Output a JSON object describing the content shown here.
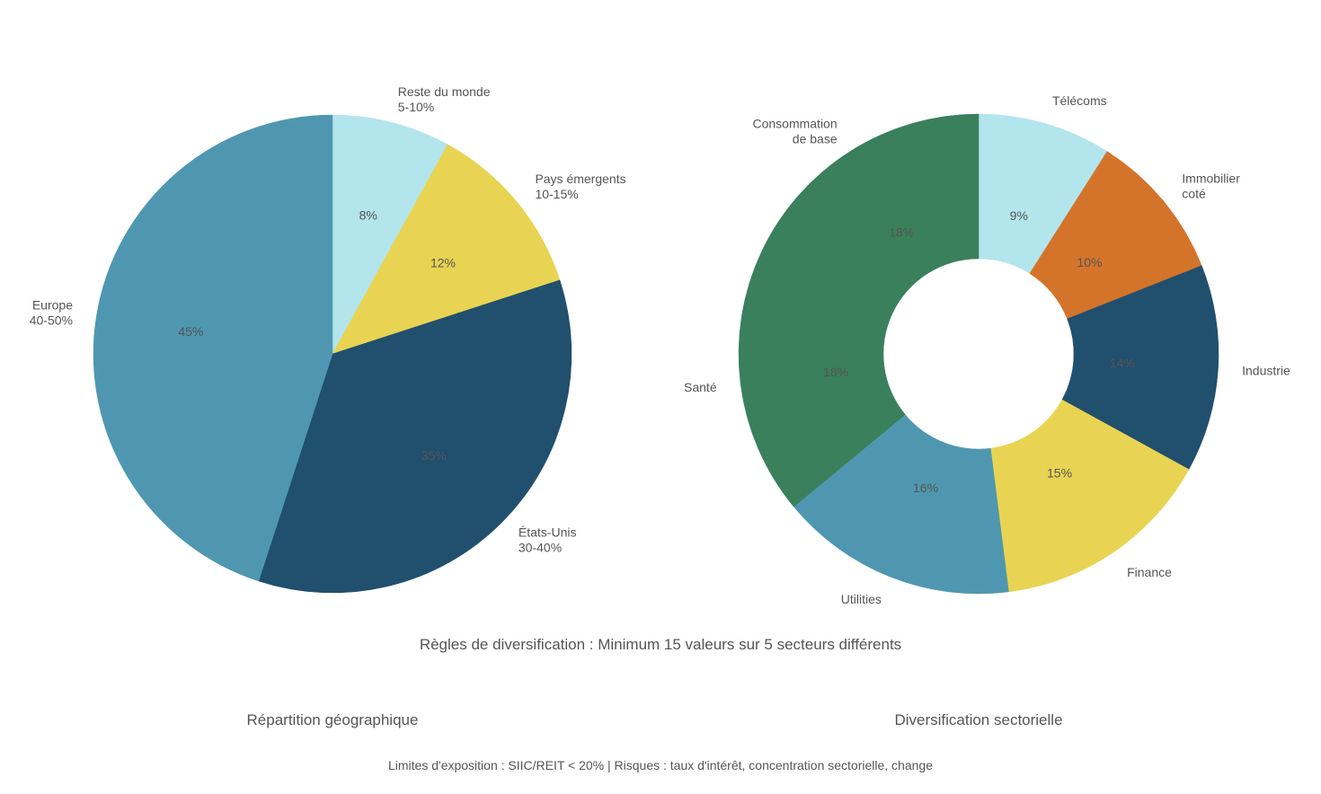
{
  "chart_data": [
    {
      "type": "pie",
      "title": "Répartition géographique",
      "slices": [
        {
          "name": "Reste du monde",
          "range": "5-10%",
          "value": 8,
          "label": "8%",
          "color": "#b3e5ec"
        },
        {
          "name": "Pays émergents",
          "range": "10-15%",
          "value": 12,
          "label": "12%",
          "color": "#e8d452"
        },
        {
          "name": "États-Unis",
          "range": "30-40%",
          "value": 35,
          "label": "35%",
          "color": "#214f6e"
        },
        {
          "name": "Europe",
          "range": "40-50%",
          "value": 45,
          "label": "45%",
          "color": "#4f97b0"
        }
      ]
    },
    {
      "type": "donut",
      "title": "Diversification sectorielle",
      "slices": [
        {
          "name": "Télécoms",
          "value": 9,
          "label": "9%",
          "color": "#b3e5ec"
        },
        {
          "name": "Immobilier\ncoté",
          "value": 10,
          "label": "10%",
          "color": "#d4742b"
        },
        {
          "name": "Industrie",
          "value": 14,
          "label": "14%",
          "color": "#214f6e"
        },
        {
          "name": "Finance",
          "value": 15,
          "label": "15%",
          "color": "#e8d452"
        },
        {
          "name": "Utilities",
          "value": 16,
          "label": "16%",
          "color": "#4f97b0"
        },
        {
          "name": "Santé",
          "value": 18,
          "label": "18%",
          "color": "#3a805c"
        },
        {
          "name": "Consommation\nde base",
          "value": 18,
          "label": "18%",
          "color": "#3a805c"
        }
      ]
    }
  ],
  "note": "Règles de diversification : Minimum 15 valeurs sur 5 secteurs différents",
  "footer": "Limites d'exposition : SIIC/REIT < 20% | Risques : taux d'intérêt, concentration sectorielle, change"
}
